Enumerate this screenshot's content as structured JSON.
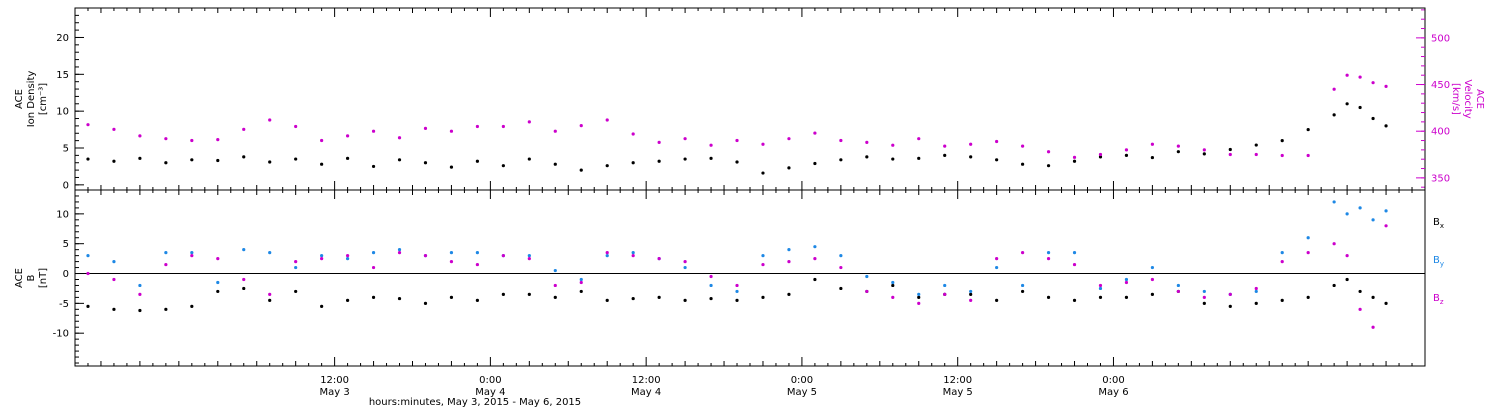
{
  "chart_data": [
    {
      "type": "scatter",
      "panel": "top",
      "title": "",
      "ylabel_left": [
        "ACE",
        "Ion Density",
        "[cm⁻³]"
      ],
      "ylabel_right": [
        "ACE",
        "Velocity",
        "[km/s]"
      ],
      "left_axis": {
        "ylim": [
          -0.7,
          24
        ],
        "ticks": [
          "0",
          "5",
          "10",
          "15",
          "20"
        ],
        "tick_values": [
          0,
          5,
          10,
          15,
          20
        ]
      },
      "right_axis": {
        "ylim": [
          337,
          532
        ],
        "ticks": [
          "350",
          "400",
          "450",
          "500"
        ],
        "tick_values": [
          350,
          400,
          450,
          500
        ],
        "color": "#cc00cc"
      },
      "xlim_hours": [
        -8,
        96
      ],
      "series": [
        {
          "axis": "left",
          "color": "#000000",
          "x": [
            -7,
            -5,
            -3,
            -1,
            1,
            3,
            5,
            7,
            9,
            11,
            13,
            15,
            17,
            19,
            21,
            23,
            25,
            27,
            29,
            31,
            33,
            35,
            37,
            39,
            41,
            43,
            45,
            47,
            49,
            51,
            53,
            55,
            57,
            59,
            61,
            63,
            65,
            67,
            69,
            71,
            73,
            75,
            77,
            79,
            81,
            83,
            85,
            87,
            89,
            90,
            91,
            92,
            93
          ],
          "y": [
            3.5,
            3.2,
            3.6,
            3.0,
            3.4,
            3.3,
            3.8,
            3.1,
            3.5,
            2.8,
            3.6,
            2.5,
            3.4,
            3.0,
            2.4,
            3.2,
            2.6,
            3.5,
            2.8,
            2.0,
            2.6,
            3.0,
            3.2,
            3.5,
            3.6,
            3.1,
            1.6,
            2.3,
            2.9,
            3.4,
            3.8,
            3.5,
            3.6,
            4.0,
            3.8,
            3.4,
            2.8,
            2.6,
            3.2,
            3.8,
            4.0,
            3.7,
            4.5,
            4.2,
            4.8,
            5.4,
            6.0,
            7.5,
            9.5,
            11.0,
            10.5,
            9.0,
            8.0
          ]
        },
        {
          "axis": "right",
          "color": "#cc00cc",
          "x": [
            -7,
            -5,
            -3,
            -1,
            1,
            3,
            5,
            7,
            9,
            11,
            13,
            15,
            17,
            19,
            21,
            23,
            25,
            27,
            29,
            31,
            33,
            35,
            37,
            39,
            41,
            43,
            45,
            47,
            49,
            51,
            53,
            55,
            57,
            59,
            61,
            63,
            65,
            67,
            69,
            71,
            73,
            75,
            77,
            79,
            81,
            83,
            85,
            87,
            89,
            90,
            91,
            92,
            93
          ],
          "y": [
            407,
            402,
            395,
            392,
            390,
            391,
            402,
            412,
            405,
            390,
            395,
            400,
            393,
            403,
            400,
            405,
            405,
            410,
            400,
            406,
            412,
            397,
            388,
            392,
            385,
            390,
            386,
            392,
            398,
            390,
            388,
            385,
            392,
            384,
            386,
            389,
            384,
            378,
            372,
            375,
            380,
            386,
            384,
            380,
            375,
            375,
            374,
            374,
            445,
            460,
            458,
            452,
            448
          ]
        }
      ]
    },
    {
      "type": "scatter",
      "panel": "bottom",
      "title": "",
      "ylabel_left": [
        "ACE",
        "B",
        "[nT]"
      ],
      "left_axis": {
        "ylim": [
          -15.5,
          14
        ],
        "ticks": [
          "-10",
          "-5",
          "0",
          "5",
          "10"
        ],
        "tick_values": [
          -10,
          -5,
          0,
          5,
          10
        ]
      },
      "zero_line": 0,
      "xlim_hours": [
        -8,
        96
      ],
      "series": [
        {
          "name": "Bx",
          "color": "#000000",
          "x": [
            -7,
            -5,
            -3,
            -1,
            1,
            3,
            5,
            7,
            9,
            11,
            13,
            15,
            17,
            19,
            21,
            23,
            25,
            27,
            29,
            31,
            33,
            35,
            37,
            39,
            41,
            43,
            45,
            47,
            49,
            51,
            53,
            55,
            57,
            59,
            61,
            63,
            65,
            67,
            69,
            71,
            73,
            75,
            77,
            79,
            81,
            83,
            85,
            87,
            89,
            90,
            91,
            92,
            93
          ],
          "y": [
            -5.5,
            -6.0,
            -6.2,
            -6.0,
            -5.5,
            -3.0,
            -2.5,
            -4.5,
            -3.0,
            -5.5,
            -4.5,
            -4.0,
            -4.2,
            -5.0,
            -4.0,
            -4.5,
            -3.5,
            -3.5,
            -4.0,
            -3.0,
            -4.5,
            -4.2,
            -4.0,
            -4.5,
            -4.2,
            -4.5,
            -4.0,
            -3.5,
            -1.0,
            -2.5,
            -3.0,
            -2.0,
            -4.0,
            -3.5,
            -3.5,
            -4.5,
            -3.0,
            -4.0,
            -4.5,
            -4.0,
            -4.0,
            -3.5,
            -3.0,
            -5.0,
            -5.5,
            -5.0,
            -4.5,
            -4.0,
            -2.0,
            -1.0,
            -3.0,
            -4.0,
            -5.0
          ]
        },
        {
          "name": "By",
          "color": "#1e88e5",
          "x": [
            -7,
            -5,
            -3,
            -1,
            1,
            3,
            5,
            7,
            9,
            11,
            13,
            15,
            17,
            19,
            21,
            23,
            25,
            27,
            29,
            31,
            33,
            35,
            37,
            39,
            41,
            43,
            45,
            47,
            49,
            51,
            53,
            55,
            57,
            59,
            61,
            63,
            65,
            67,
            69,
            71,
            73,
            75,
            77,
            79,
            81,
            83,
            85,
            87,
            89,
            90,
            91,
            92,
            93
          ],
          "y": [
            3.0,
            2.0,
            -2.0,
            3.5,
            3.5,
            -1.5,
            4.0,
            3.5,
            1.0,
            3.0,
            2.5,
            3.5,
            4.0,
            3.0,
            3.5,
            3.5,
            3.0,
            3.0,
            0.5,
            -1.0,
            3.0,
            3.5,
            2.5,
            1.0,
            -2.0,
            -3.0,
            3.0,
            4.0,
            4.5,
            3.0,
            -0.5,
            -1.5,
            -3.5,
            -2.0,
            -3.0,
            1.0,
            -2.0,
            3.5,
            3.5,
            -2.5,
            -1.0,
            1.0,
            -2.0,
            -3.0,
            -3.5,
            -3.0,
            3.5,
            6.0,
            12.0,
            10.0,
            11.0,
            9.0,
            10.5
          ]
        },
        {
          "name": "Bz",
          "color": "#cc00cc",
          "x": [
            -7,
            -5,
            -3,
            -1,
            1,
            3,
            5,
            7,
            9,
            11,
            13,
            15,
            17,
            19,
            21,
            23,
            25,
            27,
            29,
            31,
            33,
            35,
            37,
            39,
            41,
            43,
            45,
            47,
            49,
            51,
            53,
            55,
            57,
            59,
            61,
            63,
            65,
            67,
            69,
            71,
            73,
            75,
            77,
            79,
            81,
            83,
            85,
            87,
            89,
            90,
            91,
            92,
            93
          ],
          "y": [
            0.0,
            -1.0,
            -3.5,
            1.5,
            3.0,
            2.5,
            -1.0,
            -3.5,
            2.0,
            2.5,
            3.0,
            1.0,
            3.5,
            3.0,
            2.0,
            1.5,
            3.0,
            2.5,
            -2.0,
            -1.5,
            3.5,
            3.0,
            2.5,
            2.0,
            -0.5,
            -2.0,
            1.5,
            2.0,
            2.5,
            1.0,
            -3.0,
            -4.0,
            -5.0,
            -3.5,
            -4.5,
            2.5,
            3.5,
            2.5,
            1.5,
            -2.0,
            -1.5,
            -1.0,
            -3.0,
            -4.0,
            -3.5,
            -2.5,
            2.0,
            3.5,
            5.0,
            3.0,
            -6.0,
            -9.0,
            8.0
          ]
        }
      ],
      "legend": {
        "placement": "right",
        "entries": [
          {
            "label": "B",
            "sub": "x",
            "color": "#000000"
          },
          {
            "label": "B",
            "sub": "y",
            "color": "#1e88e5"
          },
          {
            "label": "B",
            "sub": "z",
            "color": "#cc00cc"
          }
        ]
      }
    }
  ],
  "x_axis": {
    "major_hours": [
      12,
      24,
      36,
      48,
      60,
      72
    ],
    "tick_labels": [
      {
        "hour": 12,
        "time": "12:00",
        "day": "May 3"
      },
      {
        "hour": 24,
        "time": "0:00",
        "day": "May 4"
      },
      {
        "hour": 36,
        "time": "12:00",
        "day": "May 4"
      },
      {
        "hour": 48,
        "time": "0:00",
        "day": "May 5"
      },
      {
        "hour": 60,
        "time": "12:00",
        "day": "May 5"
      },
      {
        "hour": 72,
        "time": "0:00",
        "day": "May 6"
      }
    ],
    "title": "hours:minutes, May  3, 2015 - May  6, 2015"
  }
}
